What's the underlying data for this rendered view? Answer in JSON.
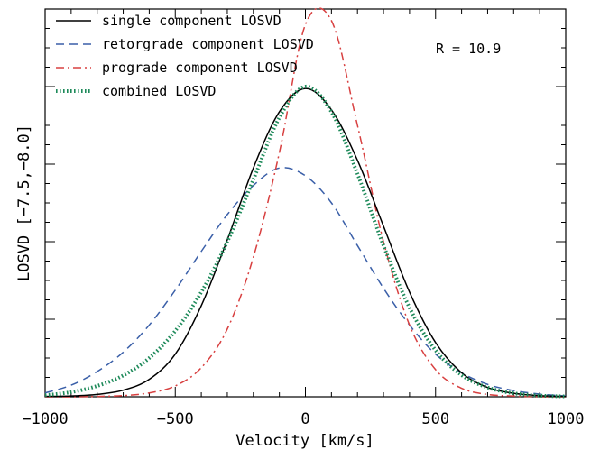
{
  "chart_data": {
    "type": "line",
    "title": "",
    "xlabel": "Velocity [km/s]",
    "ylabel": "LOSVD [−7.5,−8.0]",
    "xlim": [
      -1000,
      1000
    ],
    "ylim": [
      0,
      1.0
    ],
    "grid": false,
    "legend_position": "top-left",
    "annotation": "R = 10.9",
    "x_ticks": [
      {
        "value": -1000,
        "label": "−1000"
      },
      {
        "value": -500,
        "label": "−500"
      },
      {
        "value": 0,
        "label": "0"
      },
      {
        "value": 500,
        "label": "500"
      },
      {
        "value": 1000,
        "label": "1000"
      }
    ],
    "series": [
      {
        "name": "single component LOSVD",
        "color": "#000000",
        "style": "solid",
        "x": [
          -1000,
          -900,
          -800,
          -700,
          -600,
          -500,
          -400,
          -300,
          -200,
          -100,
          0,
          100,
          200,
          300,
          400,
          500,
          600,
          700,
          800,
          900,
          1000
        ],
        "y": [
          0.001,
          0.002,
          0.006,
          0.017,
          0.045,
          0.11,
          0.235,
          0.405,
          0.59,
          0.735,
          0.795,
          0.74,
          0.61,
          0.44,
          0.27,
          0.14,
          0.062,
          0.024,
          0.009,
          0.003,
          0.001
        ]
      },
      {
        "name": "retorgrade component LOSVD",
        "color": "#3a5fa8",
        "style": "dashed",
        "x": [
          -1000,
          -900,
          -800,
          -700,
          -600,
          -500,
          -400,
          -300,
          -200,
          -100,
          0,
          100,
          200,
          300,
          400,
          500,
          600,
          700,
          800,
          900,
          1000
        ],
        "y": [
          0.01,
          0.03,
          0.065,
          0.115,
          0.185,
          0.275,
          0.375,
          0.47,
          0.545,
          0.59,
          0.57,
          0.5,
          0.39,
          0.28,
          0.185,
          0.11,
          0.062,
          0.032,
          0.016,
          0.007,
          0.002
        ]
      },
      {
        "name": "prograde component LOSVD",
        "color": "#d84040",
        "style": "dashdot",
        "x": [
          -1000,
          -900,
          -800,
          -700,
          -600,
          -500,
          -400,
          -300,
          -200,
          -100,
          0,
          100,
          200,
          300,
          400,
          500,
          600,
          700,
          800,
          900,
          1000
        ],
        "y": [
          0.0,
          0.0,
          0.001,
          0.003,
          0.01,
          0.028,
          0.075,
          0.175,
          0.36,
          0.63,
          0.96,
          0.97,
          0.7,
          0.4,
          0.185,
          0.07,
          0.022,
          0.006,
          0.002,
          0.0,
          0.0
        ]
      },
      {
        "name": "combined LOSVD",
        "color": "#1e8a5a",
        "style": "dotted",
        "x": [
          -1000,
          -900,
          -800,
          -700,
          -600,
          -500,
          -400,
          -300,
          -200,
          -100,
          0,
          100,
          200,
          300,
          400,
          500,
          600,
          700,
          800,
          900,
          1000
        ],
        "y": [
          0.004,
          0.012,
          0.028,
          0.055,
          0.1,
          0.17,
          0.27,
          0.4,
          0.56,
          0.72,
          0.8,
          0.735,
          0.575,
          0.39,
          0.23,
          0.12,
          0.056,
          0.024,
          0.009,
          0.003,
          0.001
        ]
      }
    ]
  }
}
